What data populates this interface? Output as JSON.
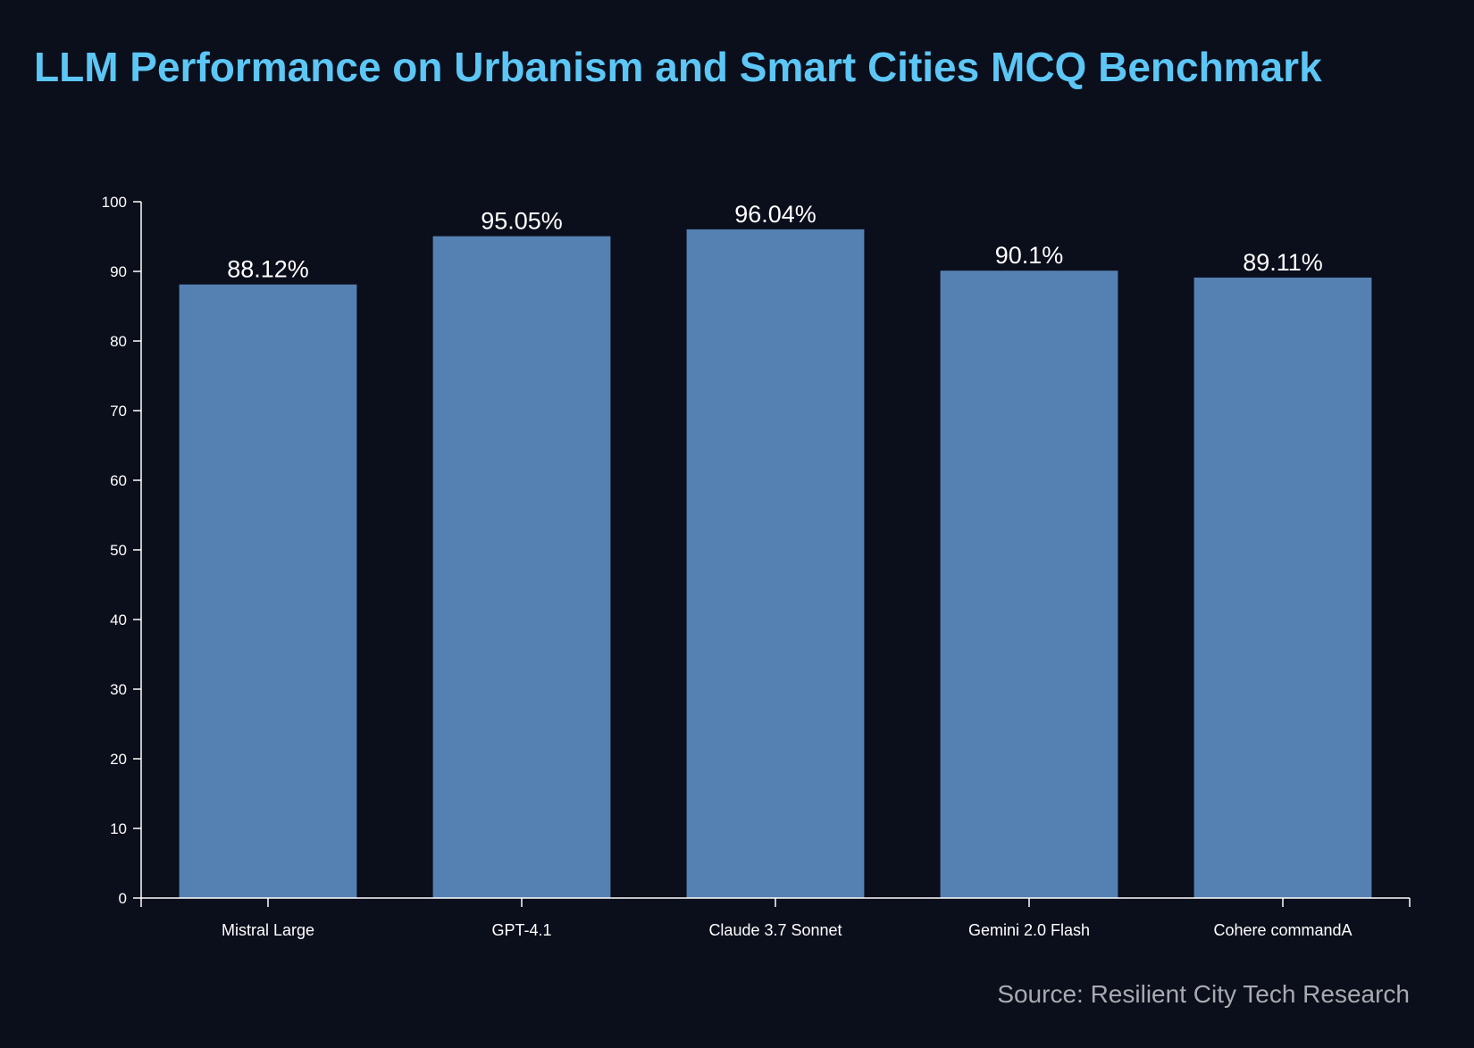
{
  "title": "LLM Performance on Urbanism and Smart Cities MCQ Benchmark",
  "source": "Source: Resilient City Tech Research",
  "colors": {
    "background": "#0b0e1b",
    "title": "#5cc6f5",
    "bar": "#5581b2",
    "axis": "#ffffff",
    "text": "#ffffff",
    "source": "#a9aab0"
  },
  "chart_data": {
    "type": "bar",
    "categories": [
      "Mistral Large",
      "GPT-4.1",
      "Claude 3.7 Sonnet",
      "Gemini 2.0 Flash",
      "Cohere commandA"
    ],
    "values": [
      88.12,
      95.05,
      96.04,
      90.1,
      89.11
    ],
    "value_labels": [
      "88.12%",
      "95.05%",
      "96.04%",
      "90.1%",
      "89.11%"
    ],
    "ylim": [
      0,
      100
    ],
    "yticks": [
      0,
      10,
      20,
      30,
      40,
      50,
      60,
      70,
      80,
      90,
      100
    ],
    "xlabel": "",
    "ylabel": "",
    "grid": false,
    "legend": "none"
  }
}
